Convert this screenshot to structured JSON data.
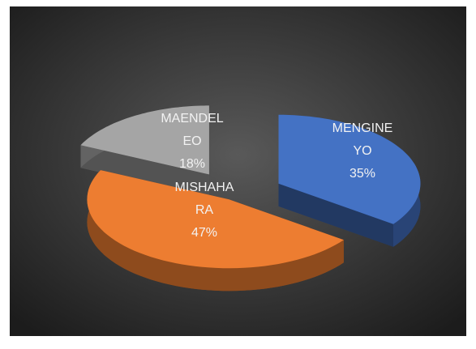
{
  "chart_data": {
    "type": "pie",
    "categories": [
      "MENGINEYO",
      "MISHAHARA",
      "MAENDELEO"
    ],
    "values": [
      35,
      47,
      18
    ],
    "value_labels": [
      "35%",
      "47%",
      "18%"
    ],
    "colors": [
      "#4472c4",
      "#ed7d31",
      "#a5a5a5"
    ],
    "data_labels": true
  }
}
